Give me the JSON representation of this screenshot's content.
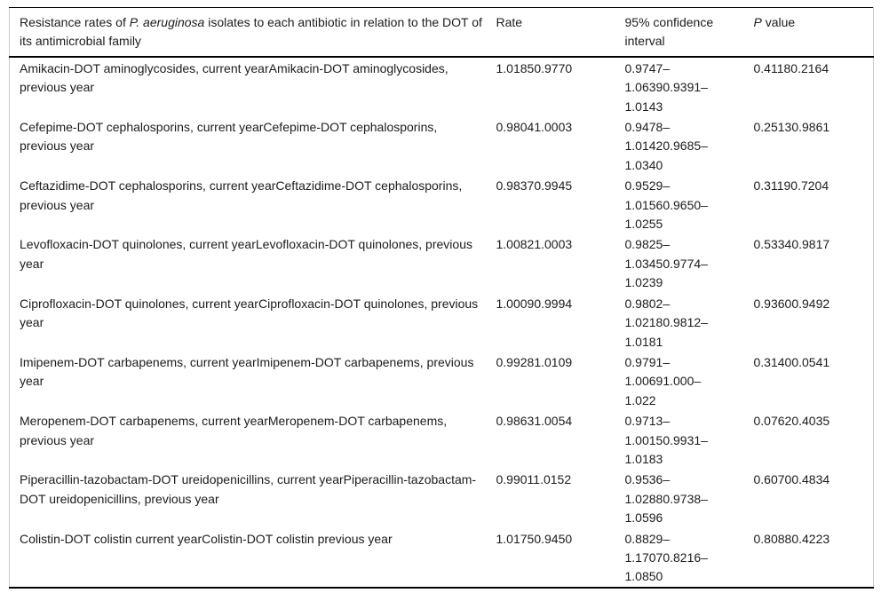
{
  "table": {
    "header": {
      "description_prefix": "Resistance rates of ",
      "description_italic": "P. aeruginosa",
      "description_suffix": " isolates to each antibiotic in relation to the DOT of its antimicrobial family",
      "rate_label": "Rate",
      "ci_label": "95% confidence interval",
      "p_italic": "P",
      "p_suffix": " value"
    },
    "rows": [
      {
        "name": "Amikacin-DOT aminoglycosides, current yearAmikacin-DOT aminoglycosides, previous year",
        "rate": "1.01850.9770",
        "ci_lines": [
          "0.9747–",
          "1.06390.9391–",
          "1.0143"
        ],
        "p_value": "0.41180.2164"
      },
      {
        "name": "Cefepime-DOT cephalosporins, current yearCefepime-DOT cephalosporins, previous year",
        "rate": "0.98041.0003",
        "ci_lines": [
          "0.9478–",
          "1.01420.9685–",
          "1.0340"
        ],
        "p_value": "0.25130.9861"
      },
      {
        "name": "Ceftazidime-DOT cephalosporins, current yearCeftazidime-DOT cephalosporins, previous year",
        "rate": "0.98370.9945",
        "ci_lines": [
          "0.9529–",
          "1.01560.9650–",
          "1.0255"
        ],
        "p_value": "0.31190.7204"
      },
      {
        "name": "Levofloxacin-DOT quinolones, current yearLevofloxacin-DOT quinolones, previous year",
        "rate": "1.00821.0003",
        "ci_lines": [
          "0.9825–",
          "1.03450.9774–",
          "1.0239"
        ],
        "p_value": "0.53340.9817"
      },
      {
        "name": "Ciprofloxacin-DOT quinolones, current yearCiprofloxacin-DOT quinolones, previous year",
        "rate": "1.00090.9994",
        "ci_lines": [
          "0.9802–",
          "1.02180.9812–",
          "1.0181"
        ],
        "p_value": "0.93600.9492"
      },
      {
        "name": "Imipenem-DOT carbapenems, current yearImipenem-DOT carbapenems, previous year",
        "rate": "0.99281.0109",
        "ci_lines": [
          "0.9791–",
          "1.00691.000–",
          "1.022"
        ],
        "p_value": "0.31400.0541"
      },
      {
        "name": "Meropenem-DOT carbapenems, current yearMeropenem-DOT carbapenems, previous year",
        "rate": "0.98631.0054",
        "ci_lines": [
          "0.9713–",
          "1.00150.9931–",
          "1.0183"
        ],
        "p_value": "0.07620.4035"
      },
      {
        "name": "Piperacillin-tazobactam-DOT ureidopenicillins, current yearPiperacillin-tazobactam-DOT ureidopenicillins, previous year",
        "rate": "0.99011.0152",
        "ci_lines": [
          "0.9536–",
          "1.02880.9738–",
          "1.0596"
        ],
        "p_value": "0.60700.4834"
      },
      {
        "name": "Colistin-DOT colistin current yearColistin-DOT colistin previous year",
        "rate": "1.01750.9450",
        "ci_lines": [
          "0.8829–",
          "1.17070.8216–",
          "1.0850"
        ],
        "p_value": "0.80880.4223"
      }
    ]
  },
  "colors": {
    "text": "#1c1c1c",
    "rule": "#000000",
    "side_border": "#cccccc",
    "background": "#ffffff"
  }
}
